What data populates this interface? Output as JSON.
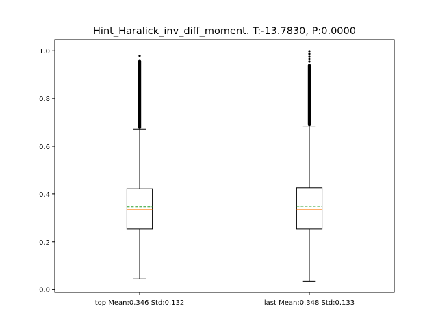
{
  "chart_data": {
    "type": "box",
    "title": "Hint_Haralick_inv_diff_moment. T:-13.7830, P:0.0000",
    "xlabel": "",
    "ylabel": "",
    "ylim": [
      -0.0125,
      1.0465
    ],
    "yticks": [
      0.0,
      0.2,
      0.4,
      0.6,
      0.8,
      1.0
    ],
    "ytick_labels": [
      "0.0",
      "0.2",
      "0.4",
      "0.6",
      "0.8",
      "1.0"
    ],
    "grid": false,
    "categories": [
      "top Mean:0.346 Std:0.132",
      "last Mean:0.348 Std:0.133"
    ],
    "boxes": [
      {
        "label": "top Mean:0.346 Std:0.132",
        "whisker_low": 0.044,
        "q1": 0.254,
        "median": 0.334,
        "mean": 0.346,
        "q3": 0.422,
        "whisker_high": 0.671,
        "outlier_range": [
          0.672,
          0.962
        ],
        "outliers_extra": [
          0.979
        ]
      },
      {
        "label": "last Mean:0.348 Std:0.133",
        "whisker_low": 0.035,
        "q1": 0.254,
        "median": 0.334,
        "mean": 0.348,
        "q3": 0.426,
        "whisker_high": 0.684,
        "outlier_range": [
          0.685,
          0.945
        ],
        "outliers_extra": [
          0.955,
          0.965,
          0.975,
          0.987,
          0.998
        ]
      }
    ],
    "colors": {
      "box": "#000000",
      "median": "#ff7f0e",
      "mean": "#2ca02c",
      "outlier": "#000000"
    }
  }
}
